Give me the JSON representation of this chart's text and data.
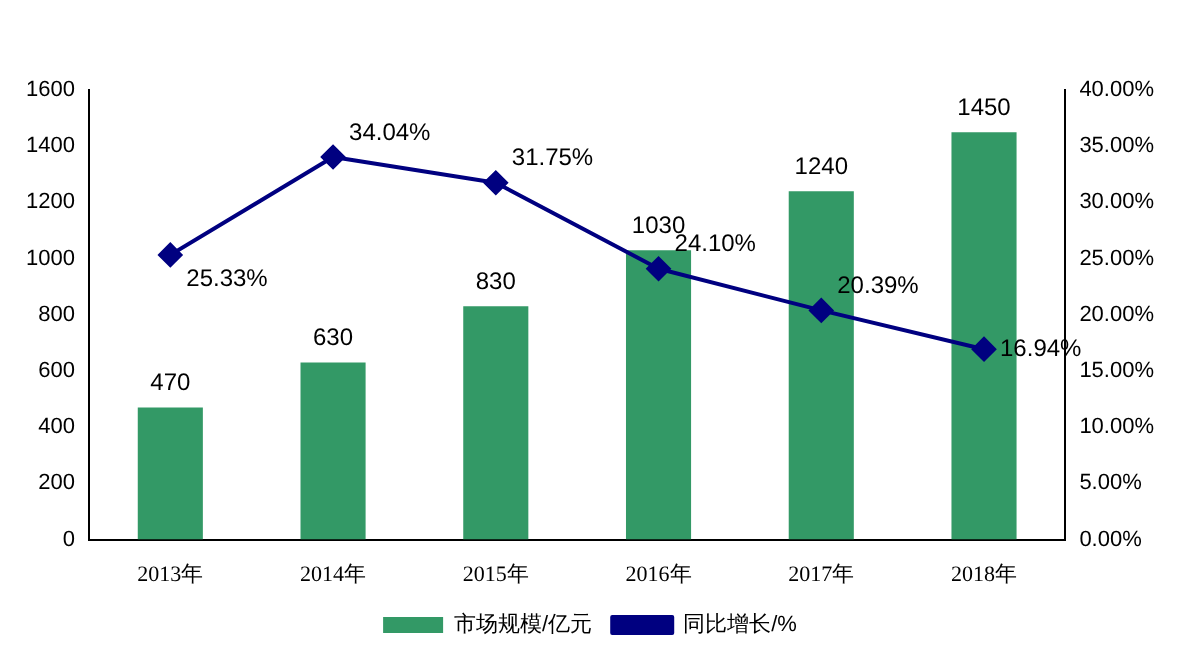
{
  "chart_data": {
    "type": "bar",
    "categories": [
      "2013年",
      "2014年",
      "2015年",
      "2016年",
      "2017年",
      "2018年"
    ],
    "series": [
      {
        "name": "市场规模/亿元",
        "color": "#339966",
        "values": [
          470,
          630,
          830,
          1030,
          1240,
          1450
        ],
        "value_labels": [
          "470",
          "630",
          "830",
          "1030",
          "1240",
          "1450"
        ]
      },
      {
        "name": "同比增长/%",
        "type": "line",
        "axis": "y2",
        "color": "#000080",
        "values": [
          25.33,
          34.04,
          31.75,
          24.1,
          20.39,
          16.94
        ],
        "value_labels": [
          "25.33%",
          "34.04%",
          "31.75%",
          "24.10%",
          "20.39%",
          "16.94%"
        ]
      }
    ],
    "ylim": [
      0,
      1600
    ],
    "yticks": [
      0,
      200,
      400,
      600,
      800,
      1000,
      1200,
      1400,
      1600
    ],
    "y2lim": [
      0,
      40
    ],
    "y2ticks": [
      {
        "value": 0,
        "label": "0.00%"
      },
      {
        "value": 5,
        "label": "5.00%"
      },
      {
        "value": 10,
        "label": "10.00%"
      },
      {
        "value": 15,
        "label": "15.00%"
      },
      {
        "value": 20,
        "label": "20.00%"
      },
      {
        "value": 25,
        "label": "25.00%"
      },
      {
        "value": 30,
        "label": "30.00%"
      },
      {
        "value": 35,
        "label": "35.00%"
      },
      {
        "value": 40,
        "label": "40.00%"
      }
    ],
    "grid": false,
    "legend": "bottom",
    "marker": "diamond",
    "line_style": "solid"
  }
}
